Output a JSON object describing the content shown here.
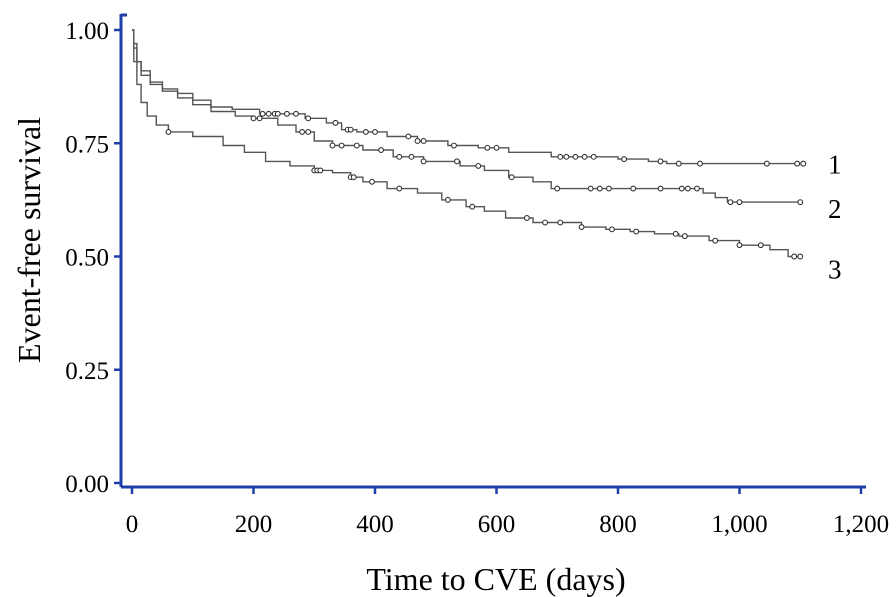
{
  "chart_data": {
    "type": "line",
    "title": "",
    "xlabel": "Time to CVE (days)",
    "ylabel": "Event-free survival",
    "xlim": [
      -10,
      1200
    ],
    "ylim": [
      0,
      1.0
    ],
    "x_ticks": [
      0,
      200,
      400,
      600,
      800,
      1000,
      1200
    ],
    "x_tick_labels": [
      "0",
      "200",
      "400",
      "600",
      "800",
      "1,000",
      "1,200"
    ],
    "y_ticks": [
      0,
      0.25,
      0.5,
      0.75,
      1.0
    ],
    "y_tick_labels": [
      "0.00",
      "0.25",
      "0.50",
      "0.75",
      "1.00"
    ],
    "axis_color": "#1f3fa8",
    "line_color": "#555555",
    "grid": false,
    "series": [
      {
        "label": "1",
        "points": [
          [
            0,
            1.0
          ],
          [
            3,
            0.97
          ],
          [
            8,
            0.93
          ],
          [
            15,
            0.91
          ],
          [
            30,
            0.885
          ],
          [
            50,
            0.87
          ],
          [
            75,
            0.86
          ],
          [
            100,
            0.845
          ],
          [
            130,
            0.83
          ],
          [
            165,
            0.825
          ],
          [
            210,
            0.815
          ],
          [
            250,
            0.815
          ],
          [
            285,
            0.805
          ],
          [
            320,
            0.795
          ],
          [
            345,
            0.78
          ],
          [
            370,
            0.775
          ],
          [
            420,
            0.765
          ],
          [
            470,
            0.755
          ],
          [
            520,
            0.745
          ],
          [
            570,
            0.74
          ],
          [
            620,
            0.73
          ],
          [
            660,
            0.73
          ],
          [
            690,
            0.72
          ],
          [
            750,
            0.72
          ],
          [
            800,
            0.715
          ],
          [
            850,
            0.71
          ],
          [
            880,
            0.705
          ],
          [
            960,
            0.705
          ],
          [
            1030,
            0.705
          ],
          [
            1100,
            0.705
          ]
        ],
        "censor_x": [
          215,
          225,
          235,
          240,
          255,
          270,
          290,
          335,
          355,
          360,
          385,
          400,
          455,
          470,
          480,
          530,
          585,
          600,
          705,
          715,
          730,
          745,
          760,
          810,
          870,
          900,
          935,
          1045,
          1095,
          1105
        ]
      },
      {
        "label": "2",
        "points": [
          [
            0,
            1.0
          ],
          [
            3,
            0.96
          ],
          [
            8,
            0.93
          ],
          [
            15,
            0.9
          ],
          [
            30,
            0.88
          ],
          [
            50,
            0.865
          ],
          [
            75,
            0.85
          ],
          [
            100,
            0.835
          ],
          [
            130,
            0.82
          ],
          [
            170,
            0.81
          ],
          [
            200,
            0.805
          ],
          [
            240,
            0.79
          ],
          [
            270,
            0.775
          ],
          [
            300,
            0.755
          ],
          [
            330,
            0.745
          ],
          [
            380,
            0.735
          ],
          [
            430,
            0.72
          ],
          [
            480,
            0.71
          ],
          [
            540,
            0.7
          ],
          [
            580,
            0.69
          ],
          [
            620,
            0.675
          ],
          [
            660,
            0.665
          ],
          [
            690,
            0.65
          ],
          [
            750,
            0.65
          ],
          [
            800,
            0.65
          ],
          [
            850,
            0.65
          ],
          [
            940,
            0.64
          ],
          [
            960,
            0.63
          ],
          [
            980,
            0.62
          ],
          [
            1040,
            0.62
          ],
          [
            1100,
            0.62
          ]
        ],
        "censor_x": [
          200,
          210,
          280,
          290,
          330,
          345,
          370,
          410,
          440,
          460,
          480,
          535,
          570,
          625,
          700,
          755,
          770,
          785,
          825,
          870,
          905,
          915,
          930,
          985,
          1000,
          1100
        ]
      },
      {
        "label": "3",
        "points": [
          [
            0,
            1.0
          ],
          [
            3,
            0.93
          ],
          [
            8,
            0.88
          ],
          [
            15,
            0.84
          ],
          [
            25,
            0.81
          ],
          [
            40,
            0.79
          ],
          [
            60,
            0.775
          ],
          [
            100,
            0.765
          ],
          [
            150,
            0.745
          ],
          [
            185,
            0.73
          ],
          [
            220,
            0.71
          ],
          [
            260,
            0.7
          ],
          [
            300,
            0.69
          ],
          [
            330,
            0.685
          ],
          [
            360,
            0.675
          ],
          [
            380,
            0.665
          ],
          [
            420,
            0.65
          ],
          [
            470,
            0.64
          ],
          [
            510,
            0.625
          ],
          [
            550,
            0.61
          ],
          [
            580,
            0.6
          ],
          [
            615,
            0.585
          ],
          [
            660,
            0.575
          ],
          [
            690,
            0.575
          ],
          [
            740,
            0.565
          ],
          [
            780,
            0.56
          ],
          [
            820,
            0.555
          ],
          [
            860,
            0.55
          ],
          [
            900,
            0.545
          ],
          [
            950,
            0.535
          ],
          [
            1000,
            0.525
          ],
          [
            1050,
            0.515
          ],
          [
            1080,
            0.5
          ],
          [
            1100,
            0.5
          ]
        ],
        "censor_x": [
          60,
          300,
          305,
          310,
          360,
          365,
          395,
          440,
          520,
          560,
          650,
          680,
          705,
          740,
          790,
          830,
          895,
          910,
          960,
          1000,
          1035,
          1090,
          1100
        ]
      }
    ]
  }
}
